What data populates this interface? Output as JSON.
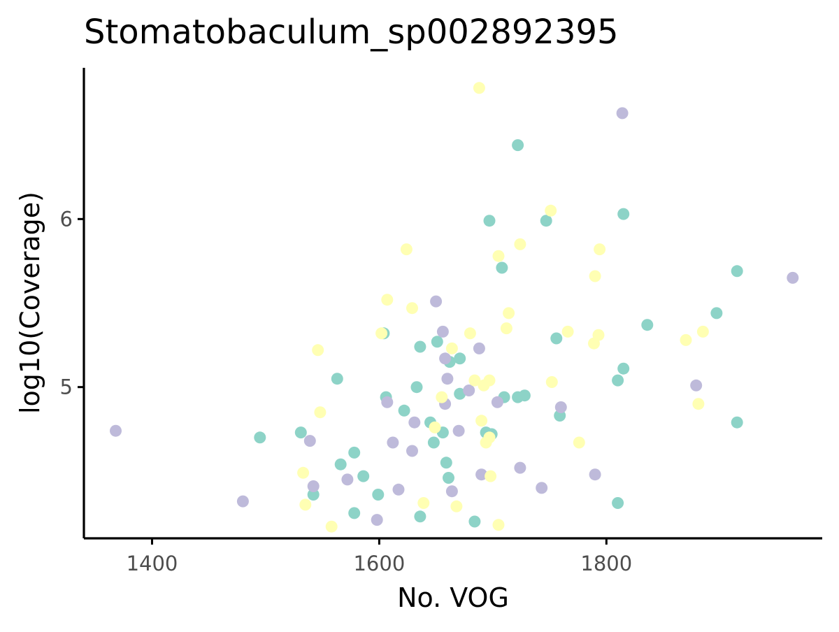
{
  "chart_data": {
    "type": "scatter",
    "title": "Stomatobaculum_sp002892395",
    "xlabel": "No. VOG",
    "ylabel": "log10(Coverage)",
    "xlim": [
      1340,
      1990
    ],
    "ylim": [
      4.1,
      6.9
    ],
    "x_ticks": [
      1400,
      1600,
      1800
    ],
    "x_tick_labels": [
      "1400",
      "1600",
      "1800"
    ],
    "y_ticks": [
      5,
      6
    ],
    "y_tick_labels": [
      "5",
      "6"
    ],
    "grid": false,
    "legend": "none",
    "colors": {
      "teal": "#8dd3c7",
      "lavender": "#bebada",
      "yellow": "#ffffb3"
    },
    "series": [
      {
        "color": "teal",
        "points": [
          [
            1495,
            4.7
          ],
          [
            1531,
            4.73
          ],
          [
            1542,
            4.36
          ],
          [
            1563,
            5.05
          ],
          [
            1566,
            4.54
          ],
          [
            1578,
            4.61
          ],
          [
            1578,
            4.25
          ],
          [
            1586,
            4.47
          ],
          [
            1599,
            4.36
          ],
          [
            1604,
            5.32
          ],
          [
            1606,
            4.94
          ],
          [
            1622,
            4.86
          ],
          [
            1633,
            5.0
          ],
          [
            1636,
            5.24
          ],
          [
            1636,
            4.23
          ],
          [
            1645,
            4.79
          ],
          [
            1648,
            4.67
          ],
          [
            1651,
            5.27
          ],
          [
            1656,
            4.73
          ],
          [
            1659,
            4.55
          ],
          [
            1661,
            4.46
          ],
          [
            1662,
            5.15
          ],
          [
            1671,
            5.17
          ],
          [
            1671,
            4.96
          ],
          [
            1684,
            4.2
          ],
          [
            1694,
            4.73
          ],
          [
            1697,
            5.99
          ],
          [
            1699,
            4.72
          ],
          [
            1708,
            5.71
          ],
          [
            1710,
            4.94
          ],
          [
            1722,
            6.44
          ],
          [
            1722,
            4.94
          ],
          [
            1728,
            4.95
          ],
          [
            1747,
            5.99
          ],
          [
            1756,
            5.29
          ],
          [
            1759,
            4.83
          ],
          [
            1810,
            5.04
          ],
          [
            1810,
            4.31
          ],
          [
            1815,
            6.03
          ],
          [
            1815,
            5.11
          ],
          [
            1836,
            5.37
          ],
          [
            1897,
            5.44
          ],
          [
            1915,
            5.69
          ],
          [
            1915,
            4.79
          ]
        ]
      },
      {
        "color": "lavender",
        "points": [
          [
            1368,
            4.74
          ],
          [
            1480,
            4.32
          ],
          [
            1539,
            4.68
          ],
          [
            1542,
            4.41
          ],
          [
            1572,
            4.45
          ],
          [
            1598,
            4.21
          ],
          [
            1607,
            4.91
          ],
          [
            1612,
            4.67
          ],
          [
            1617,
            4.39
          ],
          [
            1629,
            4.62
          ],
          [
            1631,
            4.79
          ],
          [
            1650,
            5.51
          ],
          [
            1656,
            5.33
          ],
          [
            1658,
            5.17
          ],
          [
            1658,
            4.9
          ],
          [
            1660,
            5.05
          ],
          [
            1664,
            4.38
          ],
          [
            1670,
            4.74
          ],
          [
            1679,
            4.98
          ],
          [
            1688,
            5.23
          ],
          [
            1690,
            4.48
          ],
          [
            1704,
            4.91
          ],
          [
            1724,
            4.52
          ],
          [
            1743,
            4.4
          ],
          [
            1760,
            4.88
          ],
          [
            1790,
            4.48
          ],
          [
            1814,
            6.63
          ],
          [
            1879,
            5.01
          ],
          [
            1964,
            5.65
          ]
        ]
      },
      {
        "color": "yellow",
        "points": [
          [
            1688,
            6.78
          ],
          [
            1751,
            6.05
          ],
          [
            1624,
            5.82
          ],
          [
            1724,
            5.85
          ],
          [
            1705,
            5.78
          ],
          [
            1794,
            5.82
          ],
          [
            1790,
            5.66
          ],
          [
            1607,
            5.52
          ],
          [
            1629,
            5.47
          ],
          [
            1714,
            5.44
          ],
          [
            1712,
            5.35
          ],
          [
            1602,
            5.32
          ],
          [
            1680,
            5.32
          ],
          [
            1766,
            5.33
          ],
          [
            1793,
            5.31
          ],
          [
            1870,
            5.28
          ],
          [
            1885,
            5.33
          ],
          [
            1789,
            5.26
          ],
          [
            1546,
            5.22
          ],
          [
            1664,
            5.23
          ],
          [
            1684,
            5.04
          ],
          [
            1692,
            5.01
          ],
          [
            1697,
            5.04
          ],
          [
            1752,
            5.03
          ],
          [
            1655,
            4.94
          ],
          [
            1881,
            4.9
          ],
          [
            1548,
            4.85
          ],
          [
            1690,
            4.8
          ],
          [
            1649,
            4.76
          ],
          [
            1697,
            4.7
          ],
          [
            1694,
            4.67
          ],
          [
            1776,
            4.67
          ],
          [
            1698,
            4.47
          ],
          [
            1533,
            4.49
          ],
          [
            1639,
            4.31
          ],
          [
            1668,
            4.29
          ],
          [
            1535,
            4.3
          ],
          [
            1558,
            4.17
          ],
          [
            1705,
            4.18
          ]
        ]
      }
    ]
  }
}
